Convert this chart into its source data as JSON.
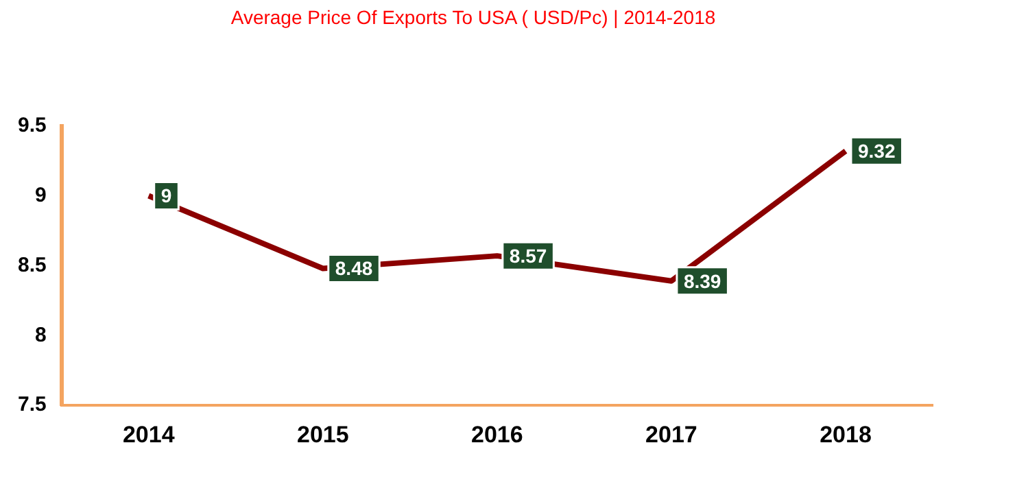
{
  "chart_data": {
    "type": "line",
    "title": "Average Price Of Exports To USA ( USD/Pc) | 2014-2018",
    "categories": [
      "2014",
      "2015",
      "2016",
      "2017",
      "2018"
    ],
    "values": [
      9,
      8.48,
      8.57,
      8.39,
      9.32
    ],
    "color": "#8b0000",
    "ylim": [
      7.5,
      9.5
    ],
    "yticks": [
      7.5,
      8,
      8.5,
      9,
      9.5
    ],
    "grid": false,
    "data_labels": true,
    "marker": "none"
  }
}
